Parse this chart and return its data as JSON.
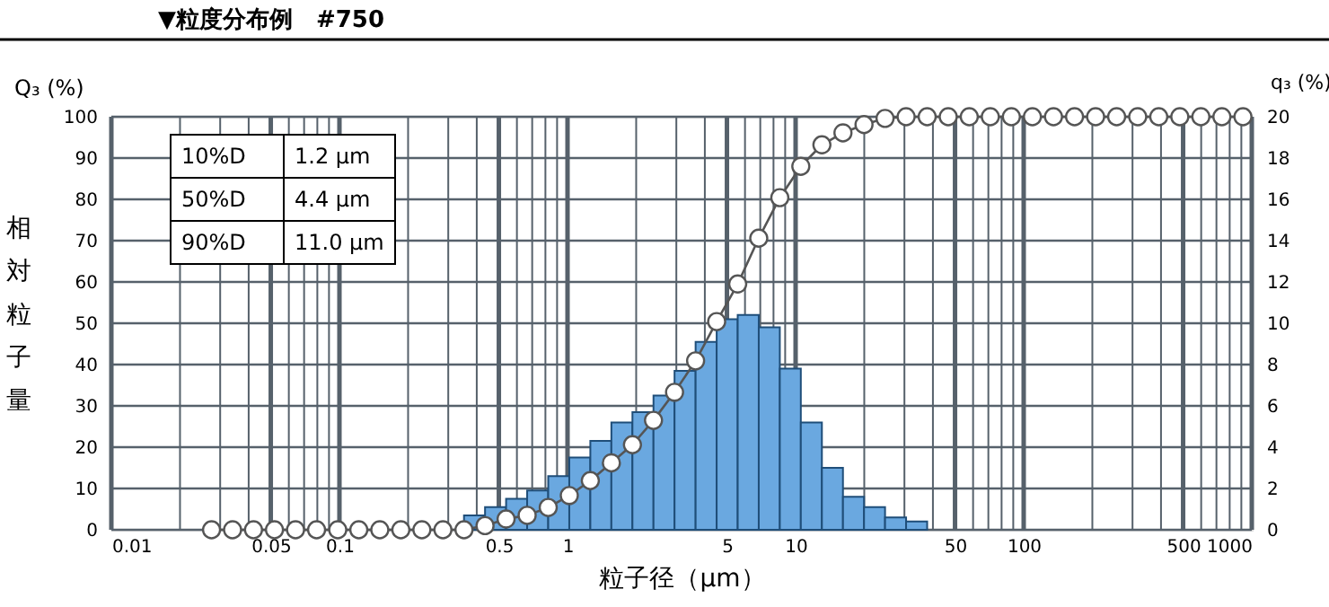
{
  "chart_data": {
    "type": "histogram",
    "title": "▼粒度分布例　#750",
    "xlabel": "粒子径（μm）",
    "ylabel": "相対粒子量",
    "y2label": "q₃ (%)",
    "annotations": [
      "Q₃ (%)",
      "10%D",
      "1.2 μm",
      "50%D",
      "4.4 μm",
      "90%D",
      "11.0 μm"
    ],
    "log": "x",
    "grid": true,
    "xlim": [
      0.01,
      1000
    ],
    "xticks": [
      0.01,
      {
        "value": 0.02,
        "label": null
      },
      {
        "value": 0.03,
        "label": null
      },
      {
        "value": 0.04,
        "label": null
      },
      0.05,
      {
        "value": 0.06,
        "label": null
      },
      {
        "value": 0.07,
        "label": null
      },
      {
        "value": 0.08,
        "label": null
      },
      {
        "value": 0.09,
        "label": null
      },
      0.1,
      {
        "value": 0.2,
        "label": null
      },
      {
        "value": 0.3,
        "label": null
      },
      {
        "value": 0.4,
        "label": null
      },
      0.5,
      {
        "value": 0.6,
        "label": null
      },
      {
        "value": 0.7,
        "label": null
      },
      {
        "value": 0.8,
        "label": null
      },
      {
        "value": 0.9,
        "label": null
      },
      1,
      {
        "value": 2,
        "label": null
      },
      {
        "value": 3,
        "label": null
      },
      {
        "value": 4,
        "label": null
      },
      5,
      {
        "value": 6,
        "label": null
      },
      {
        "value": 7,
        "label": null
      },
      {
        "value": 8,
        "label": null
      },
      {
        "value": 9,
        "label": null
      },
      10,
      {
        "value": 20,
        "label": null
      },
      {
        "value": 30,
        "label": null
      },
      {
        "value": 40,
        "label": null
      },
      50,
      {
        "value": 60,
        "label": null
      },
      {
        "value": 70,
        "label": null
      },
      {
        "value": 80,
        "label": null
      },
      {
        "value": 90,
        "label": null
      },
      100,
      {
        "value": 200,
        "label": null
      },
      {
        "value": 300,
        "label": null
      },
      {
        "value": 400,
        "label": null
      },
      500,
      {
        "value": 600,
        "label": null
      },
      {
        "value": 700,
        "label": null
      },
      {
        "value": 800,
        "label": null
      },
      {
        "value": 900,
        "label": null
      },
      1000
    ],
    "ylim": [
      0,
      100
    ],
    "yticks": [
      0,
      10,
      20,
      30,
      40,
      50,
      60,
      70,
      80,
      90,
      100
    ],
    "y2lim": [
      0,
      20
    ],
    "y2ticks": [
      0,
      2,
      4,
      6,
      8,
      10,
      12,
      14,
      16,
      18,
      20
    ],
    "series": [
      {
        "type": "histogram",
        "axis": "y2",
        "color": "#6aa8e0",
        "bins": [
          0.3517,
          0.4349,
          0.5379,
          0.6653,
          0.823,
          1.018,
          1.259,
          1.557,
          1.926,
          2.382,
          2.946,
          3.644,
          4.507,
          5.574,
          6.894,
          8.527,
          10.54,
          13.04,
          16.13,
          19.95,
          24.67,
          30.51,
          37.74
        ],
        "values": [
          0.7,
          1.1,
          1.5,
          1.9,
          2.6,
          3.5,
          4.3,
          5.2,
          5.7,
          6.5,
          7.7,
          9.1,
          10.2,
          10.4,
          9.8,
          7.8,
          5.2,
          3.0,
          1.6,
          1.1,
          0.6,
          0.4
        ]
      },
      {
        "type": "line",
        "color": "#555555",
        "marker": "circle",
        "x": [
          0.0275,
          0.034,
          0.042,
          0.0519,
          0.0642,
          0.0794,
          0.0983,
          0.1216,
          0.1503,
          0.1859,
          0.2299,
          0.2843,
          0.3517,
          0.4349,
          0.5379,
          0.6653,
          0.823,
          1.018,
          1.259,
          1.557,
          1.926,
          2.382,
          2.946,
          3.644,
          4.507,
          5.574,
          6.894,
          8.527,
          10.54,
          13.04,
          16.13,
          19.95,
          24.67,
          30.51,
          37.74,
          46.68,
          57.73,
          71.4,
          88.31,
          109.2,
          135.1,
          167.1,
          206.7,
          255.6,
          316.1,
          391.0,
          483.6,
          598.1,
          739.6,
          914.8
        ],
        "values": [
          0,
          0,
          0,
          0,
          0,
          0,
          0,
          0,
          0,
          0,
          0,
          0,
          0,
          1.0,
          2.6,
          3.5,
          5.4,
          8.3,
          11.9,
          16.2,
          20.6,
          26.5,
          33.3,
          40.9,
          50.4,
          59.5,
          70.6,
          80.4,
          88.0,
          93.2,
          96.1,
          98.1,
          99.6,
          100,
          100,
          100,
          100,
          100,
          100,
          100,
          100,
          100,
          100,
          100,
          100,
          100,
          100,
          100,
          100,
          100
        ]
      }
    ]
  }
}
